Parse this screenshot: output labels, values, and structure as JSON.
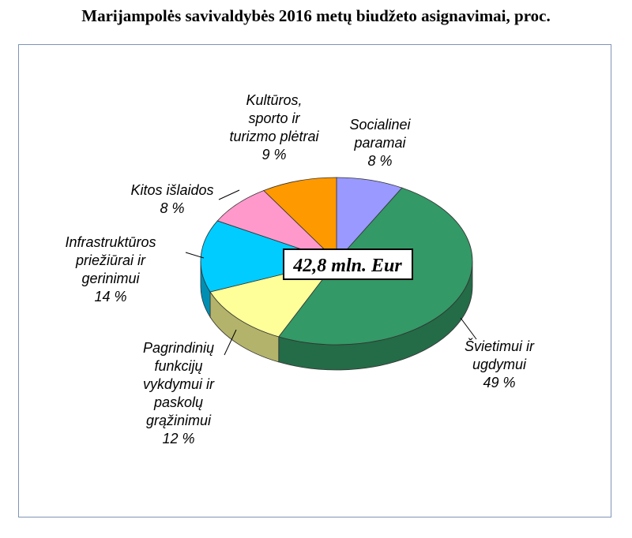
{
  "title": "Marijampolės savivaldybės 2016 metų biudžeto asignavimai, proc.",
  "center_label": "42,8 mln. Eur",
  "chart_data": {
    "type": "pie",
    "title": "Marijampolės savivaldybės 2016 metų biudžeto asignavimai, proc.",
    "total": "42,8 mln. Eur",
    "slices": [
      {
        "label_lines": [
          "Socialinei",
          "paramai"
        ],
        "value_text": "8 %",
        "value": 8,
        "color": "#9999ff"
      },
      {
        "label_lines": [
          "Švietimui ir",
          "ugdymui"
        ],
        "value_text": "49 %",
        "value": 49,
        "color": "#339966"
      },
      {
        "label_lines": [
          "Pagrindinių",
          "funkcijų",
          "vykdymui ir",
          "paskolų",
          "grąžinimui"
        ],
        "value_text": "12 %",
        "value": 12,
        "color": "#ffff99"
      },
      {
        "label_lines": [
          "Infrastruktūros",
          "priežiūrai ir",
          "gerinimui"
        ],
        "value_text": "14 %",
        "value": 14,
        "color": "#00ccff"
      },
      {
        "label_lines": [
          "Kitos išlaidos"
        ],
        "value_text": "8 %",
        "value": 8,
        "color": "#ff99cc"
      },
      {
        "label_lines": [
          "Kultūros,",
          "sporto ir",
          "turizmo plėtrai"
        ],
        "value_text": "9 %",
        "value": 9,
        "color": "#ff9900"
      }
    ]
  }
}
